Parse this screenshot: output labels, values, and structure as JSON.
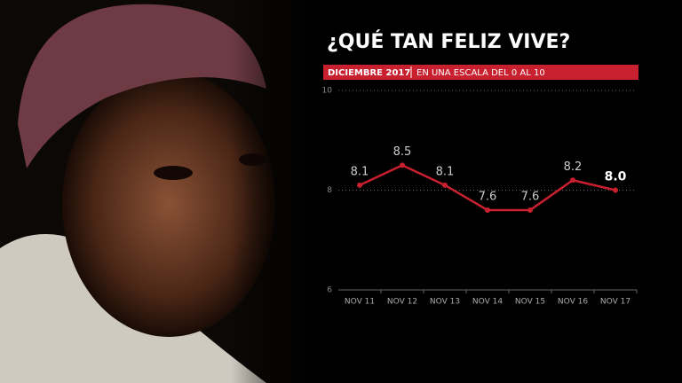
{
  "chart_data": {
    "type": "line",
    "title": "¿QUÉ TAN FELIZ VIVE?",
    "subtitle_bold": "DICIEMBRE 2017",
    "subtitle": "EN UNA ESCALA DEL 0 AL 10",
    "categories": [
      "NOV 11",
      "NOV 12",
      "NOV 13",
      "NOV 14",
      "NOV 15",
      "NOV 16",
      "NOV 17"
    ],
    "values": [
      8.1,
      8.5,
      8.1,
      7.6,
      7.6,
      8.2,
      8.0
    ],
    "value_labels": [
      "8.1",
      "8.5",
      "8.1",
      "7.6",
      "7.6",
      "8.2",
      "8.0"
    ],
    "color": "#c8202f",
    "ylim": [
      6,
      10
    ],
    "yticks": [
      6,
      8,
      10
    ],
    "grid": true
  }
}
